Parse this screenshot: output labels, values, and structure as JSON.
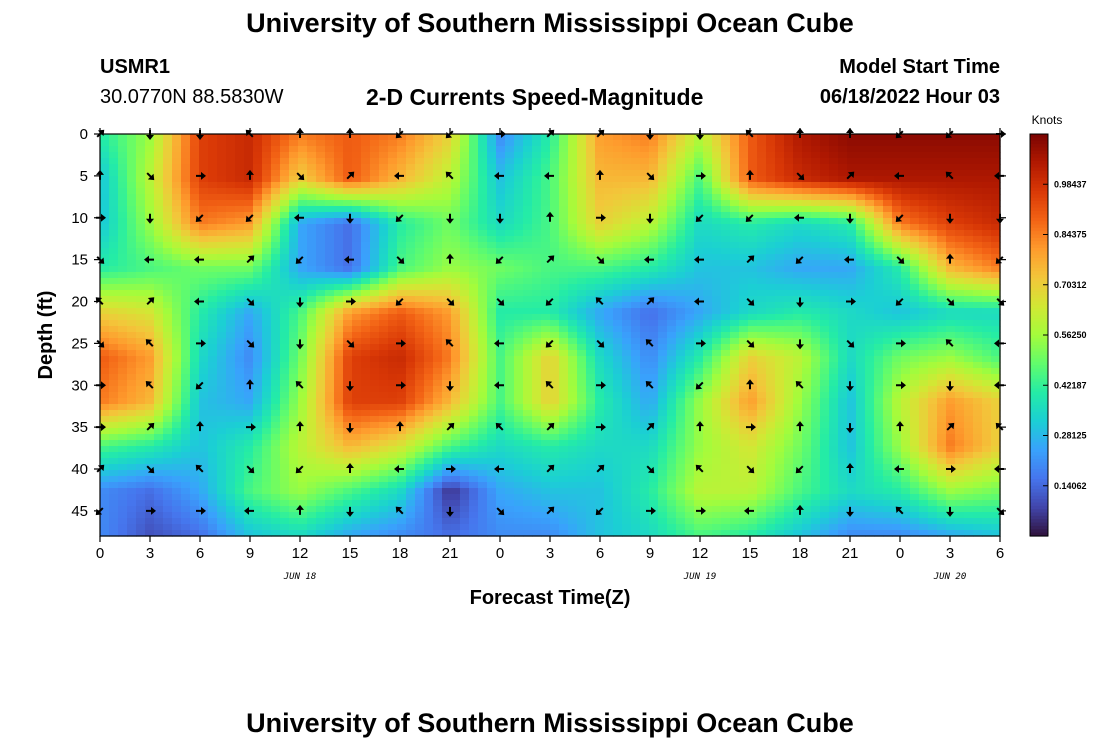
{
  "header": {
    "title": "University of Southern Mississippi Ocean Cube",
    "station": "USMR1",
    "coords": "30.0770N  88.5830W",
    "subtitle": "2-D Currents Speed-Magnitude",
    "model_label": "Model Start Time",
    "model_time": "06/18/2022 Hour 03"
  },
  "footer": {
    "title": "University of Southern Mississippi Ocean Cube"
  },
  "colorbar": {
    "unit": "Knots",
    "labels": [
      "0.98437",
      "0.84375",
      "0.70312",
      "0.56250",
      "0.42187",
      "0.28125",
      "0.14062"
    ],
    "values": [
      0.98437,
      0.84375,
      0.70312,
      0.5625,
      0.42187,
      0.28125,
      0.14062
    ],
    "range": [
      0.0,
      1.125
    ],
    "colors": [
      "#30123b",
      "#4145ab",
      "#4675ed",
      "#39a2fc",
      "#1bcfd4",
      "#24eca6",
      "#61fc6c",
      "#a4fc3b",
      "#d1e834",
      "#f3c63a",
      "#fe9b2d",
      "#f36315",
      "#d93806",
      "#b11901",
      "#7a0402"
    ]
  },
  "chart_data": {
    "type": "heatmap",
    "title": "2-D Currents Speed-Magnitude",
    "xlabel": "Forecast Time(Z)",
    "ylabel": "Depth (ft)",
    "x_ticks": [
      "0",
      "3",
      "6",
      "9",
      "12",
      "15",
      "18",
      "21",
      "0",
      "3",
      "6",
      "9",
      "12",
      "15",
      "18",
      "21",
      "0",
      "3",
      "6"
    ],
    "x_hours": [
      0,
      3,
      6,
      9,
      12,
      15,
      18,
      21,
      24,
      27,
      30,
      33,
      36,
      39,
      42,
      45,
      48,
      51,
      54
    ],
    "date_labels": [
      {
        "label": "JUN 18",
        "hour": 12
      },
      {
        "label": "JUN 19",
        "hour": 36
      },
      {
        "label": "JUN 20",
        "hour": 51
      }
    ],
    "y_ticks": [
      "0",
      "5",
      "10",
      "15",
      "20",
      "25",
      "30",
      "35",
      "40",
      "45"
    ],
    "y_values": [
      0,
      5,
      10,
      15,
      20,
      25,
      30,
      35,
      40,
      45
    ],
    "xlim": [
      0,
      54
    ],
    "ylim": [
      0,
      48
    ],
    "speed_knots": [
      [
        0.4,
        0.55,
        0.95,
        1.0,
        0.85,
        0.9,
        0.85,
        0.7,
        0.2,
        0.4,
        0.8,
        0.85,
        0.6,
        0.9,
        1.05,
        1.1,
        1.1,
        1.1,
        1.1
      ],
      [
        0.3,
        0.6,
        0.95,
        1.0,
        0.7,
        0.9,
        0.75,
        0.6,
        0.3,
        0.45,
        0.75,
        0.75,
        0.45,
        0.9,
        1.0,
        1.05,
        1.05,
        1.05,
        1.05
      ],
      [
        0.3,
        0.55,
        0.85,
        0.8,
        0.25,
        0.15,
        0.4,
        0.5,
        0.35,
        0.45,
        0.7,
        0.6,
        0.35,
        0.4,
        0.35,
        0.4,
        0.85,
        0.95,
        1.0
      ],
      [
        0.4,
        0.45,
        0.5,
        0.5,
        0.25,
        0.15,
        0.45,
        0.55,
        0.5,
        0.45,
        0.45,
        0.4,
        0.3,
        0.3,
        0.25,
        0.25,
        0.4,
        0.75,
        0.85
      ],
      [
        0.7,
        0.65,
        0.4,
        0.25,
        0.45,
        0.8,
        0.9,
        0.8,
        0.4,
        0.4,
        0.25,
        0.15,
        0.25,
        0.35,
        0.4,
        0.35,
        0.3,
        0.35,
        0.35
      ],
      [
        0.9,
        0.8,
        0.35,
        0.2,
        0.5,
        0.95,
        1.0,
        0.85,
        0.45,
        0.7,
        0.35,
        0.2,
        0.4,
        0.7,
        0.6,
        0.35,
        0.5,
        0.55,
        0.45
      ],
      [
        0.85,
        0.75,
        0.3,
        0.25,
        0.55,
        0.95,
        0.95,
        0.75,
        0.45,
        0.7,
        0.4,
        0.25,
        0.55,
        0.8,
        0.55,
        0.3,
        0.6,
        0.8,
        0.7
      ],
      [
        0.45,
        0.4,
        0.3,
        0.4,
        0.6,
        0.75,
        0.65,
        0.45,
        0.35,
        0.4,
        0.35,
        0.35,
        0.55,
        0.65,
        0.5,
        0.3,
        0.55,
        0.85,
        0.7
      ],
      [
        0.2,
        0.15,
        0.25,
        0.45,
        0.55,
        0.45,
        0.35,
        0.05,
        0.25,
        0.3,
        0.3,
        0.4,
        0.6,
        0.6,
        0.45,
        0.35,
        0.4,
        0.55,
        0.5
      ],
      [
        0.2,
        0.1,
        0.15,
        0.3,
        0.35,
        0.25,
        0.2,
        0.15,
        0.2,
        0.2,
        0.3,
        0.35,
        0.45,
        0.4,
        0.3,
        0.2,
        0.2,
        0.25,
        0.3
      ]
    ]
  }
}
